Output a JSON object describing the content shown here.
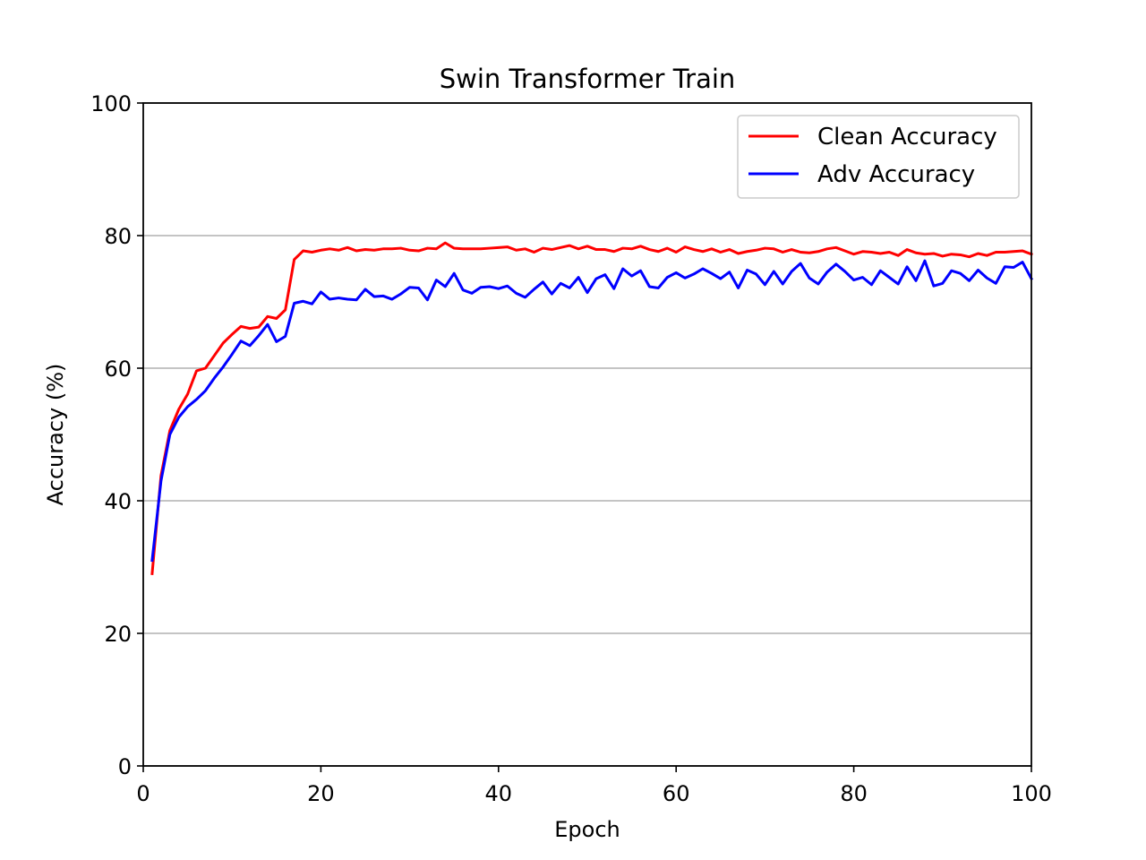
{
  "chart_data": {
    "type": "line",
    "title": "Swin Transformer Train",
    "xlabel": "Epoch",
    "ylabel": "Accuracy (%)",
    "xlim": [
      0,
      100
    ],
    "ylim": [
      0,
      100
    ],
    "xticks": [
      "0",
      "20",
      "40",
      "60",
      "80",
      "100"
    ],
    "yticks": [
      "0",
      "20",
      "40",
      "60",
      "80",
      "100"
    ],
    "grid": "horizontal",
    "legend_position": "top-right",
    "x": [
      1,
      2,
      3,
      4,
      5,
      6,
      7,
      8,
      9,
      10,
      11,
      12,
      13,
      14,
      15,
      16,
      17,
      18,
      19,
      20,
      21,
      22,
      23,
      24,
      25,
      26,
      27,
      28,
      29,
      30,
      31,
      32,
      33,
      34,
      35,
      36,
      37,
      38,
      39,
      40,
      41,
      42,
      43,
      44,
      45,
      46,
      47,
      48,
      49,
      50,
      51,
      52,
      53,
      54,
      55,
      56,
      57,
      58,
      59,
      60,
      61,
      62,
      63,
      64,
      65,
      66,
      67,
      68,
      69,
      70,
      71,
      72,
      73,
      74,
      75,
      76,
      77,
      78,
      79,
      80,
      81,
      82,
      83,
      84,
      85,
      86,
      87,
      88,
      89,
      90,
      91,
      92,
      93,
      94,
      95,
      96,
      97,
      98,
      99,
      100
    ],
    "series": [
      {
        "name": "Clean Accuracy",
        "color": "#ff0000",
        "values": [
          29.0,
          43.8,
          50.6,
          53.8,
          56.1,
          59.6,
          60.0,
          61.9,
          63.8,
          65.1,
          66.3,
          66.0,
          66.2,
          67.8,
          67.5,
          68.8,
          76.4,
          77.7,
          77.5,
          77.8,
          78.0,
          77.8,
          78.2,
          77.7,
          77.9,
          77.8,
          78.0,
          78.0,
          78.1,
          77.8,
          77.7,
          78.1,
          78.0,
          78.9,
          78.1,
          78.0,
          78.0,
          78.0,
          78.1,
          78.2,
          78.3,
          77.8,
          78.0,
          77.5,
          78.1,
          77.9,
          78.2,
          78.5,
          78.0,
          78.4,
          77.9,
          77.9,
          77.6,
          78.1,
          78.0,
          78.4,
          77.9,
          77.6,
          78.1,
          77.5,
          78.3,
          77.9,
          77.6,
          78.0,
          77.5,
          77.9,
          77.3,
          77.6,
          77.8,
          78.1,
          78.0,
          77.5,
          77.9,
          77.5,
          77.4,
          77.6,
          78.0,
          78.2,
          77.7,
          77.2,
          77.6,
          77.5,
          77.3,
          77.5,
          77.0,
          77.9,
          77.4,
          77.2,
          77.3,
          76.9,
          77.2,
          77.1,
          76.8,
          77.3,
          77.0,
          77.5,
          77.5,
          77.6,
          77.7,
          77.2
        ]
      },
      {
        "name": "Adv Accuracy",
        "color": "#0000ff",
        "values": [
          31.0,
          43.0,
          50.0,
          52.6,
          54.2,
          55.3,
          56.6,
          58.5,
          60.2,
          62.1,
          64.1,
          63.4,
          64.9,
          66.6,
          64.0,
          64.8,
          69.8,
          70.1,
          69.7,
          71.5,
          70.4,
          70.6,
          70.4,
          70.3,
          71.9,
          70.8,
          70.9,
          70.4,
          71.2,
          72.2,
          72.1,
          70.3,
          73.3,
          72.3,
          74.3,
          71.8,
          71.3,
          72.2,
          72.3,
          72.0,
          72.4,
          71.3,
          70.7,
          71.9,
          73.0,
          71.2,
          72.8,
          72.1,
          73.7,
          71.4,
          73.5,
          74.1,
          72.0,
          75.0,
          73.9,
          74.7,
          72.3,
          72.1,
          73.7,
          74.4,
          73.6,
          74.2,
          75.0,
          74.3,
          73.5,
          74.5,
          72.1,
          74.8,
          74.2,
          72.6,
          74.6,
          72.7,
          74.6,
          75.8,
          73.6,
          72.7,
          74.5,
          75.7,
          74.6,
          73.3,
          73.7,
          72.6,
          74.7,
          73.7,
          72.7,
          75.3,
          73.2,
          76.2,
          72.4,
          72.8,
          74.7,
          74.3,
          73.2,
          74.8,
          73.6,
          72.8,
          75.3,
          75.2,
          76.0,
          73.5
        ]
      }
    ]
  }
}
